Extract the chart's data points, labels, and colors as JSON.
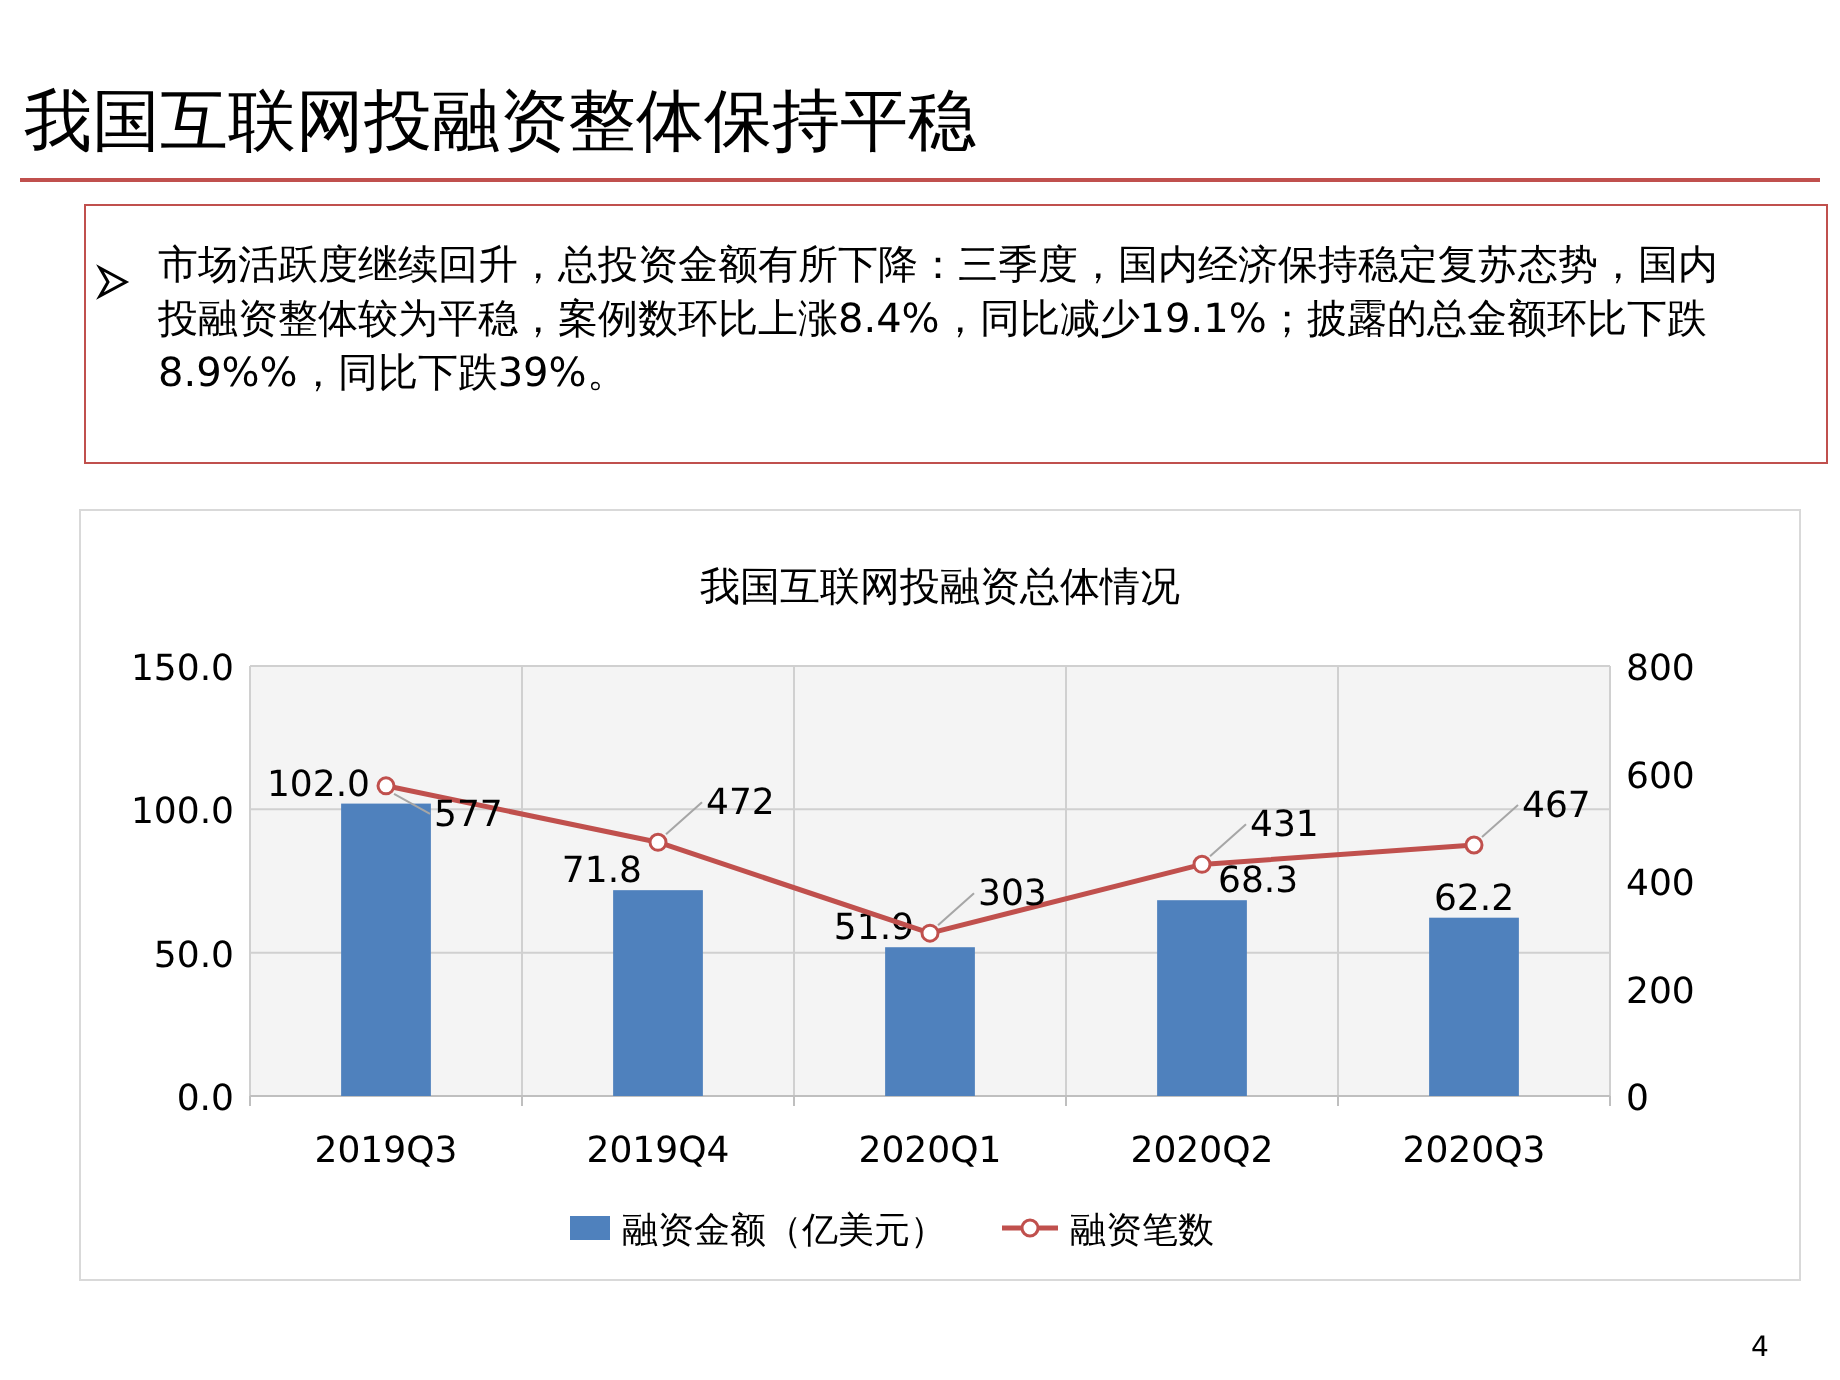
{
  "chart_data": {
    "type": "bar",
    "title": "我国互联网投融资整体保持平稳",
    "subtitle": "我国互联网投融资总体情况",
    "annotations": [
      "市场活跃度继续回升，总投资金额有所下降：三季度，国内经济保持稳定复苏态势，国内投融资整体较为平稳，案例数环比上涨8.4%，同比减少19.1%；披露的总金额环比下跌8.9%%，同比下跌39%。",
      "4"
    ],
    "categories": [
      "2019Q3",
      "2019Q4",
      "2020Q1",
      "2020Q2",
      "2020Q3"
    ],
    "series": [
      {
        "name": "融资金额（亿美元）",
        "color": "#4f81bd",
        "values": [
          102.0,
          71.8,
          51.9,
          68.3,
          62.2
        ],
        "value_labels": [
          "102.0",
          "71.8",
          "51.9",
          "68.3",
          "62.2"
        ]
      },
      {
        "name": "融资笔数",
        "type": "line",
        "axis": "y2",
        "color": "#c0504d",
        "marker": "circle",
        "values": [
          577,
          472,
          303,
          431,
          467
        ],
        "value_labels": [
          "577",
          "472",
          "303",
          "431",
          "467"
        ]
      }
    ],
    "ylim": [
      0,
      150
    ],
    "yticks": [
      {
        "value": 0,
        "label": "0.0"
      },
      {
        "value": 50,
        "label": "50.0"
      },
      {
        "value": 100,
        "label": "100.0"
      },
      {
        "value": 150,
        "label": "150.0"
      }
    ],
    "y2lim": [
      0,
      800
    ],
    "y2ticks": [
      0,
      200,
      400,
      600,
      800
    ],
    "grid": true,
    "legend": "bottom"
  }
}
